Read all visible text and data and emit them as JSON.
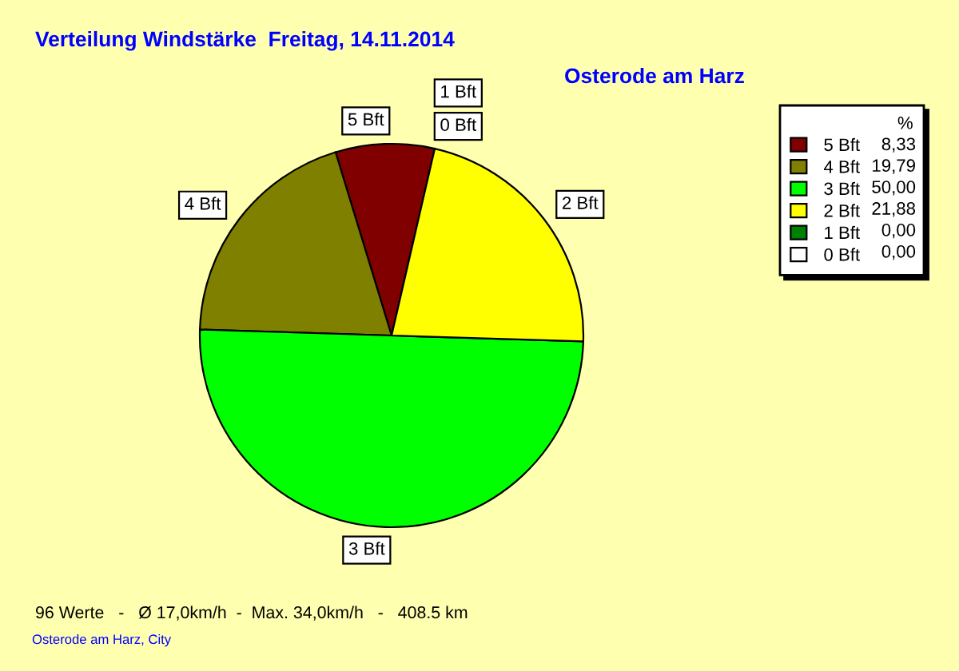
{
  "chart_data": {
    "type": "pie",
    "title": "Verteilung Windstärke  Freitag, 14.11.2014",
    "subtitle": "Osterode am Harz",
    "categories": [
      "5 Bft",
      "4 Bft",
      "3 Bft",
      "2 Bft",
      "1 Bft",
      "0 Bft"
    ],
    "values": [
      8.33,
      19.79,
      50.0,
      21.88,
      0.0,
      0.0
    ],
    "colors": [
      "#800000",
      "#808000",
      "#00ff00",
      "#ffff00",
      "#008000",
      "#ffffff"
    ],
    "value_labels": [
      "8,33",
      "19,79",
      "50,00",
      "21,88",
      "0,00",
      "0,00"
    ],
    "legend_title": "%",
    "legend": "top right",
    "annotations": [
      "96 Werte   -   Ø 17,0km/h  -  Max. 34,0km/h   -   408.5 km",
      "Osterode am Harz, City"
    ]
  }
}
